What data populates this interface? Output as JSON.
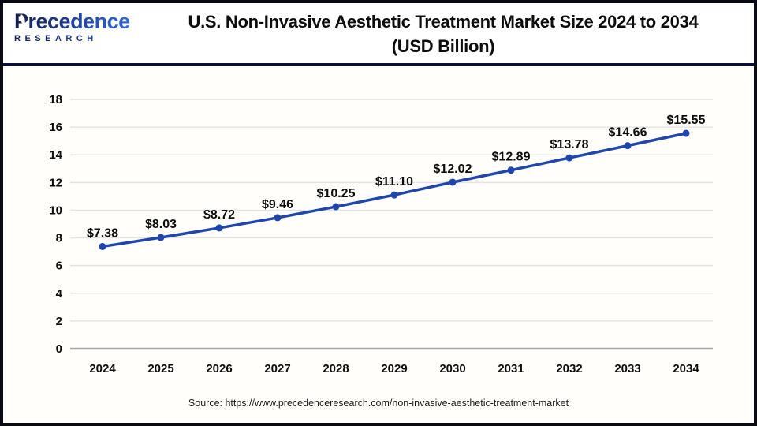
{
  "header": {
    "logo": {
      "brand": "Precedence",
      "sub": "RESEARCH"
    },
    "title_line1": "U.S. Non-Invasive Aesthetic Treatment Market Size 2024 to 2034",
    "title_line2": "(USD Billion)"
  },
  "chart_data": {
    "type": "line",
    "title": "U.S. Non-Invasive Aesthetic Treatment Market Size 2024 to 2034 (USD Billion)",
    "categories": [
      "2024",
      "2025",
      "2026",
      "2027",
      "2028",
      "2029",
      "2030",
      "2031",
      "2032",
      "2033",
      "2034"
    ],
    "values": [
      7.38,
      8.03,
      8.72,
      9.46,
      10.25,
      11.1,
      12.02,
      12.89,
      13.78,
      14.66,
      15.55
    ],
    "value_labels": [
      "$7.38",
      "$8.03",
      "$8.72",
      "$9.46",
      "$10.25",
      "$11.10",
      "$12.02",
      "$12.89",
      "$13.78",
      "$14.66",
      "$15.55"
    ],
    "xlabel": "",
    "ylabel": "",
    "ylim": [
      0,
      18
    ],
    "yticks": [
      0,
      2,
      4,
      6,
      8,
      10,
      12,
      14,
      16,
      18
    ],
    "grid": "horizontal",
    "legend": false
  },
  "footer": {
    "source": "Source: https://www.precedenceresearch.com/non-invasive-aesthetic-treatment-market"
  },
  "colors": {
    "line": "#1e46ad",
    "marker": "#1e46ad",
    "gridline": "#e4e4e4",
    "axis_line": "#a8a8a8",
    "divider_navy": "#0e1238",
    "label_text": "#0d0d0d",
    "logo_navy": "#131f4e",
    "logo_blue": "#2f6ad9"
  }
}
